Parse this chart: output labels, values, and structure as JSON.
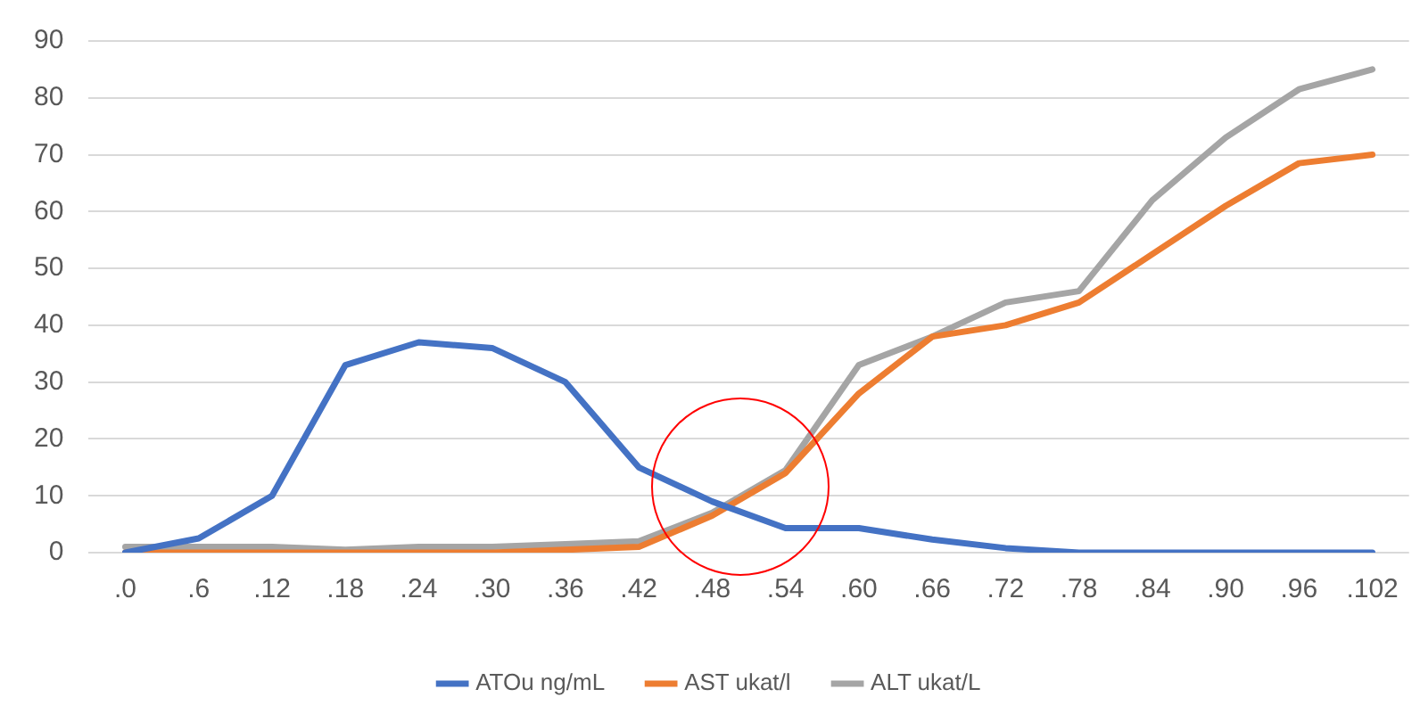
{
  "chart_data": {
    "type": "line",
    "categories": [
      ".0",
      ".6",
      ".12",
      ".18",
      ".24",
      ".30",
      ".36",
      ".42",
      ".48",
      ".54",
      ".60",
      ".66",
      ".72",
      ".78",
      ".84",
      ".90",
      ".96",
      ".102"
    ],
    "series": [
      {
        "name": "ATOu ng/mL",
        "color": "#4472c4",
        "values": [
          0,
          2.5,
          10,
          33,
          37,
          36,
          30,
          15,
          9,
          4.3,
          4.3,
          2.3,
          0.8,
          0,
          0,
          0,
          0,
          0
        ]
      },
      {
        "name": "AST ukat/l",
        "color": "#ed7d31",
        "values": [
          0,
          0,
          0,
          0,
          0,
          0,
          0.5,
          1,
          6.5,
          14,
          28,
          38,
          40,
          44,
          52.5,
          61,
          68.5,
          70
        ]
      },
      {
        "name": "ALT ukat/L",
        "color": "#a5a5a5",
        "values": [
          1,
          1,
          1,
          0.5,
          1,
          1,
          1.5,
          2,
          7,
          14.5,
          33,
          38,
          44,
          46,
          62,
          73,
          81.5,
          85
        ]
      }
    ],
    "ylim": [
      0,
      90
    ],
    "yticks": [
      0,
      10,
      20,
      30,
      40,
      50,
      60,
      70,
      80,
      90
    ],
    "grid": "y",
    "legend": "bottom",
    "marker": "none",
    "line_style": "solid"
  }
}
